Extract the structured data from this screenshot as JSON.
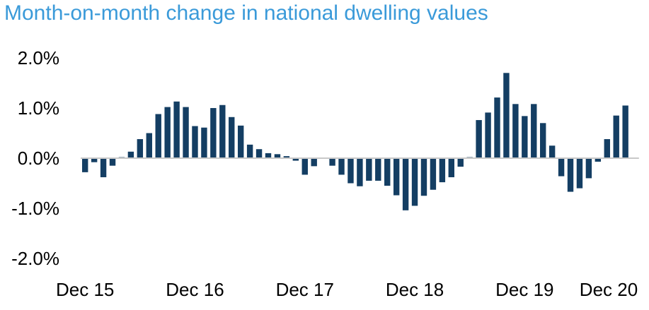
{
  "chart_data": {
    "type": "bar",
    "title": "Month-on-month change in national dwelling values",
    "xlabel": "",
    "ylabel": "",
    "ylim": [
      -2.0,
      2.0
    ],
    "y_ticks": [
      "2.0%",
      "1.0%",
      "0.0%",
      "-1.0%",
      "-2.0%"
    ],
    "x_ticks": [
      "Dec 15",
      "Dec 16",
      "Dec 17",
      "Dec 18",
      "Dec 19",
      "Dec 20"
    ],
    "grid": false,
    "legend": "none",
    "bar_color": "#143e63",
    "zero_line_color": "#c8c8c8",
    "categories": [
      "Dec 15",
      "Jan 16",
      "Feb 16",
      "Mar 16",
      "Apr 16",
      "May 16",
      "Jun 16",
      "Jul 16",
      "Aug 16",
      "Sep 16",
      "Oct 16",
      "Nov 16",
      "Dec 16",
      "Jan 17",
      "Feb 17",
      "Mar 17",
      "Apr 17",
      "May 17",
      "Jun 17",
      "Jul 17",
      "Aug 17",
      "Sep 17",
      "Oct 17",
      "Nov 17",
      "Dec 17",
      "Jan 18",
      "Feb 18",
      "Mar 18",
      "Apr 18",
      "May 18",
      "Jun 18",
      "Jul 18",
      "Aug 18",
      "Sep 18",
      "Oct 18",
      "Nov 18",
      "Dec 18",
      "Jan 19",
      "Feb 19",
      "Mar 19",
      "Apr 19",
      "May 19",
      "Jun 19",
      "Jul 19",
      "Aug 19",
      "Sep 19",
      "Oct 19",
      "Nov 19",
      "Dec 19",
      "Jan 20",
      "Feb 20",
      "Mar 20",
      "Apr 20",
      "May 20",
      "Jun 20",
      "Jul 20",
      "Aug 20",
      "Sep 20",
      "Oct 20",
      "Nov 20",
      "Dec 20"
    ],
    "values": [
      -0.28,
      -0.08,
      -0.38,
      -0.15,
      0.02,
      0.13,
      0.38,
      0.5,
      0.88,
      1.02,
      1.13,
      1.02,
      0.64,
      0.61,
      1.0,
      1.06,
      0.82,
      0.65,
      0.27,
      0.18,
      0.1,
      0.08,
      0.04,
      -0.05,
      -0.33,
      -0.16,
      0.0,
      -0.15,
      -0.33,
      -0.5,
      -0.56,
      -0.45,
      -0.45,
      -0.55,
      -0.74,
      -1.04,
      -0.95,
      -0.75,
      -0.63,
      -0.48,
      -0.38,
      -0.17,
      0.02,
      0.76,
      0.91,
      1.21,
      1.7,
      1.08,
      0.84,
      1.08,
      0.7,
      0.25,
      -0.36,
      -0.67,
      -0.6,
      -0.4,
      -0.07,
      0.38,
      0.85,
      1.05,
      0.0
    ]
  }
}
